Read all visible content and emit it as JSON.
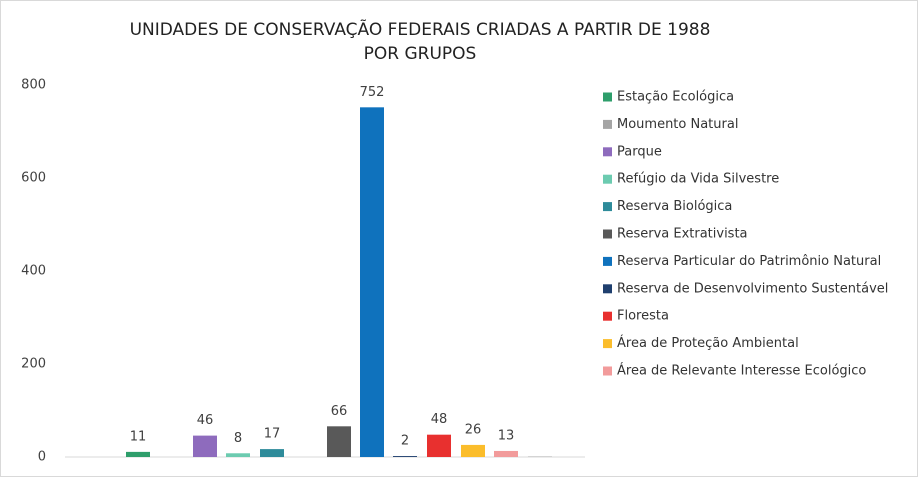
{
  "chart_data": {
    "type": "bar",
    "title": [
      "UNIDADES DE CONSERVAÇÃO FEDERAIS CRIADAS A PARTIR DE 1988",
      "POR GRUPOS"
    ],
    "series": [
      {
        "name": "Estação Ecológica",
        "color": "#2e9e6b",
        "values": [
          11
        ]
      },
      {
        "name": "Moumento Natural",
        "color": "#a5a5a5",
        "values": [
          1
        ],
        "value_labels": [
          null
        ]
      },
      {
        "name": "Parque",
        "color": "#8e6bbd",
        "values": [
          46
        ]
      },
      {
        "name": "Refúgio da Vida Silvestre",
        "color": "#6ccbb0",
        "values": [
          8
        ]
      },
      {
        "name": "Reserva Biológica",
        "color": "#2e8b9a",
        "values": [
          17
        ]
      },
      {
        "name": "Reserva Extrativista",
        "color": "#595959",
        "values": [
          66
        ]
      },
      {
        "name": "Reserva Particular do Patrimônio Natural",
        "color": "#0f72bd",
        "values": [
          752
        ]
      },
      {
        "name": "Reserva de Desenvolvimento Sustentável",
        "color": "#1f3f6e",
        "values": [
          2
        ]
      },
      {
        "name": "Floresta",
        "color": "#e8302f",
        "values": [
          48
        ]
      },
      {
        "name": "Área de Proteção Ambiental",
        "color": "#fbbd2b",
        "values": [
          26
        ]
      },
      {
        "name": "Área de Relevante Interesse Ecológico",
        "color": "#f29b9b",
        "values": [
          13
        ]
      }
    ],
    "ylim": [
      0,
      800
    ],
    "yticks": [
      0,
      200,
      400,
      600,
      800
    ],
    "grid": false,
    "legend": "right"
  }
}
